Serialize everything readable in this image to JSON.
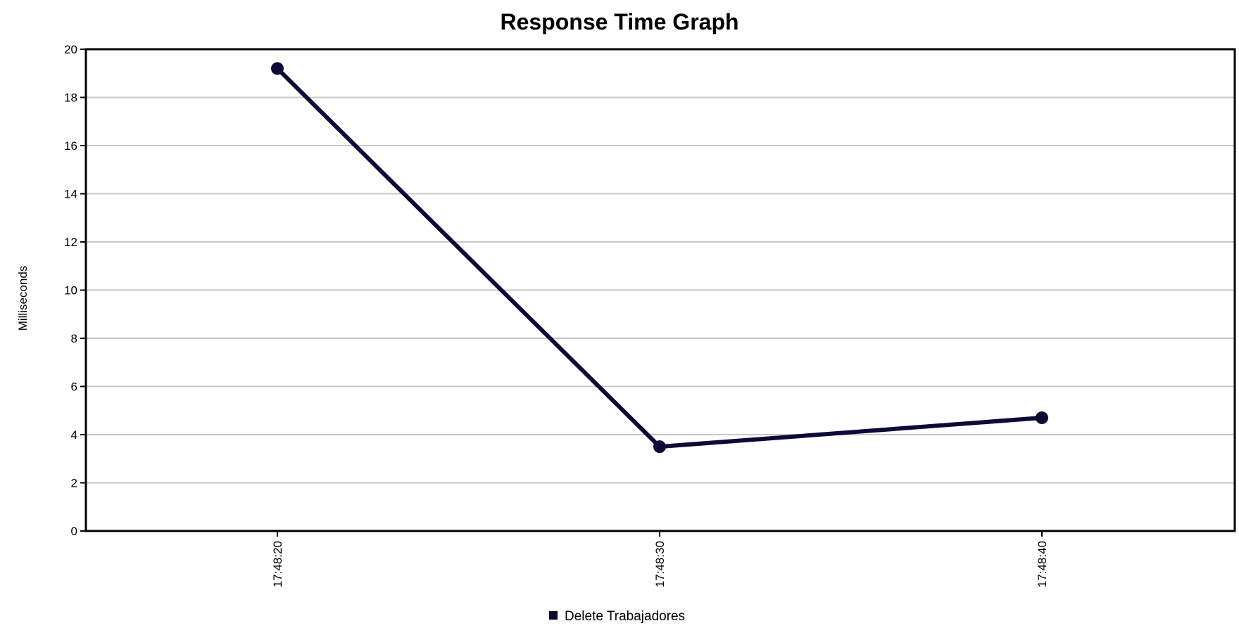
{
  "chart_data": {
    "type": "line",
    "title": "Response Time Graph",
    "xlabel": "",
    "ylabel": "Milliseconds",
    "categories": [
      "17:48:20",
      "17:48:30",
      "17:48:40"
    ],
    "ylim": [
      0,
      20
    ],
    "yticks": [
      0,
      2,
      4,
      6,
      8,
      10,
      12,
      14,
      16,
      18,
      20
    ],
    "grid": true,
    "legend_position": "bottom-center",
    "series": [
      {
        "name": "Delete Trabajadores",
        "color": "#0c0a36",
        "values": [
          19.2,
          3.5,
          4.7
        ]
      }
    ]
  }
}
